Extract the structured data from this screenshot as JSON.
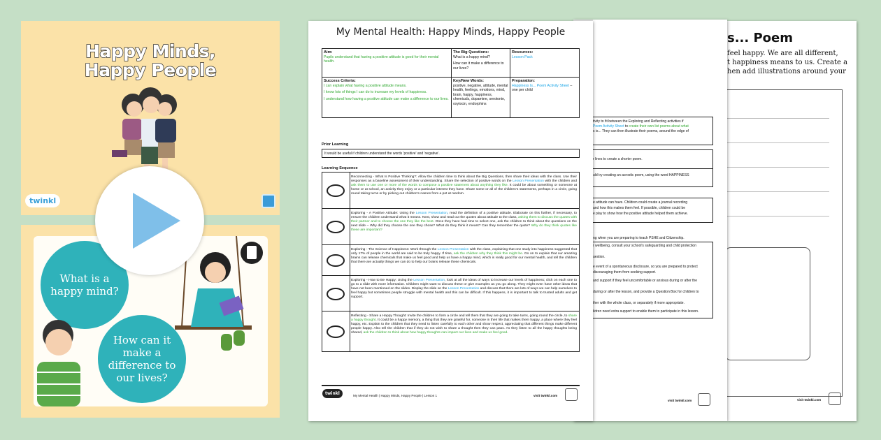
{
  "slide1": {
    "title_line1": "Happy Minds,",
    "title_line2": "Happy People",
    "logo": "twinkl",
    "bg": "#fbe2a8"
  },
  "slide2": {
    "bubble1": "What is a happy mind?",
    "bubble2": "How can it make a difference to our lives?",
    "bubble_color": "#2fb2ba"
  },
  "play_button": {
    "icon": "play-icon",
    "color": "#7fbfe9"
  },
  "doc1": {
    "title": "My Mental Health: Happy Minds, Happy People",
    "aim_h": "Aim:",
    "aim": "Pupils understand that having a positive attitude is good for their mental health.",
    "bq_h": "The Big Questions:",
    "bq1": "What is a happy mind?",
    "bq2": "How can it make a difference to our lives?",
    "res_h": "Resources:",
    "res": "Lesson Pack",
    "sc_h": "Success Criteria:",
    "sc1": "I can explain what having a positive attitude means.",
    "sc2": "I know lots of things I can do to increase my levels of happiness.",
    "sc3": "I understand how having a positive attitude can make a difference to our lives.",
    "kw_h": "Key/New Words:",
    "kw": "positive, negative, attitude, mental health, feelings, emotions, mind, brain, happy, happiness, chemicals, dopamine, serotonin, oxytocin, endorphins",
    "prep_h": "Preparation:",
    "prep_link": "Happiness Is... Poem Activity Sheet",
    "prep_rest": " – one per child",
    "prior_h": "Prior Learning",
    "prior": "It would be useful if children understand the words 'positive' and 'negative'.",
    "seq_h": "Learning Sequence",
    "sequence": [
      [
        {
          "t": "Reconnecting - What Is Positive Thinking?: Allow the children time to think about the Big Questions, then share their ideas with the class. Use their responses as a baseline assessment of their understanding. Share the selection of positive words on the ",
          "c": ""
        },
        {
          "t": "Lesson Presentation",
          "c": "b"
        },
        {
          "t": " with the children and ",
          "c": ""
        },
        {
          "t": "ask them to use one or more of the words to compose a positive statement about anything they like",
          "c": "g"
        },
        {
          "t": ". It could be about something or someone at home or at school, an activity they enjoy or a particular interest they have. Share some or all of the children's statements, perhaps in a circle, going round taking turns or by picking out children's names from a pot at random.",
          "c": ""
        }
      ],
      [
        {
          "t": "Exploring - A Positive Attitude: Using the ",
          "c": ""
        },
        {
          "t": "Lesson Presentation",
          "c": "b"
        },
        {
          "t": ", read the definition of a positive attitude. Elaborate on this further, if necessary, to ensure the children understand what it means. Next, show and read out the quotes about attitude to the class, ",
          "c": ""
        },
        {
          "t": "asking them to discuss the quotes with their partner and to choose the one they like the best",
          "c": "g"
        },
        {
          "t": ". Once they have had time to select one, ask the children to think about the questions on the next slide – Why did they choose the one they chose? What do they think it meant? Can they remember the quote? ",
          "c": ""
        },
        {
          "t": "Why do they think quotes like these are important?",
          "c": "g"
        }
      ],
      [
        {
          "t": "Exploring - The Science of Happiness: Work through the ",
          "c": ""
        },
        {
          "t": "Lesson Presentation",
          "c": "b"
        },
        {
          "t": " with the class, explaining that one study into happiness suggested that only 17% of people in the world are said to be truly happy. If time, ",
          "c": ""
        },
        {
          "t": "ask the children why they think this might be",
          "c": "g"
        },
        {
          "t": ". Go on to explain that our amazing brains can release chemicals that make us feel good and help us have a happy mind, which is really good for our mental health, and tell the children that there are actually things we can do to help our brains release these chemicals.",
          "c": ""
        }
      ],
      [
        {
          "t": "Exploring - How to Be Happy: Using the ",
          "c": ""
        },
        {
          "t": "Lesson Presentation",
          "c": "b"
        },
        {
          "t": ", look at all the ideas of ways to increase our levels of happiness; click on each one to go to a slide with more information. Children might want to discuss these or give examples as you go along. They might even have other ideas that have not been mentioned on the slides. Display the slide on the ",
          "c": ""
        },
        {
          "t": "Lesson Presentation",
          "c": "b"
        },
        {
          "t": " and discuss that there are lots of ways we can help ourselves to feel happy but sometimes people struggle with mental health and this can be difficult. If this happens, it is important to talk to trusted adults and get support.",
          "c": ""
        }
      ],
      [
        {
          "t": "Reflecting - Share a Happy Thought: Invite the children to form a circle and tell them that they are going to take turns, going round the circle, to ",
          "c": ""
        },
        {
          "t": "share a happy thought",
          "c": "g"
        },
        {
          "t": ". It could be a happy memory, a thing that they are grateful for, someone in their life that makes them happy, a place where they feel happy, etc. Explain to the children that they need to listen carefully to each other and show respect, appreciating that different things make different people happy. Also tell the children that if they do not wish to share a thought then they can pass. As they listen to all the happy thoughts being shared, ",
          "c": ""
        },
        {
          "t": "ask the children to think about how happy thoughts can impact our lives and make us feel good",
          "c": "g"
        },
        {
          "t": ".",
          "c": ""
        }
      ]
    ],
    "footer": "My Mental Health | Happy Minds, Happy People | Lesson 1",
    "footer_url": "visit twinkl.com",
    "logo": "twinkl"
  },
  "doc2": {
    "box1": [
      {
        "t": "tivity to fit between the Exploring and Reflecting activities if"
      },
      {
        "t": "Poem Activity Sheet",
        "c": "b"
      },
      {
        "t": " to "
      },
      {
        "t": "create their own list poems about what",
        "c": "g"
      },
      {
        "t": "s is... They can then illustrate their poems, around the edge of"
      }
    ],
    "box2a": "r lines to create a shorter poem.",
    "box2b": "uld try creating an acrostic poem, using the word HAPPINESS",
    "box3": [
      "e attitude can have. Children could create a journal recording",
      "and how this makes them feel. If possible, children could be",
      "e play to show how the positive attitude helped them achieve."
    ],
    "note": "ng when you are preparing to teach PSHE and Citizenship.",
    "box4": [
      "r wellbeing, consult your school's safeguarding and child protection",
      "uestion.",
      "e event of a spontaneous disclosure, so you are prepared to protect",
      "discouraging them from seeking support.",
      "and support if they feel uncomfortable or anxious during or after the",
      "during or after the lesson, and provide a Question Box for children to",
      "ther with the whole class, or separately if more appropriate.",
      "ildren need extra support to enable them to participate in this lesson."
    ],
    "footer_url": "visit twinkl.com"
  },
  "doc3": {
    "title": "s... Poem",
    "lines": [
      "feel happy. We are all different,",
      "t happiness means to us. Create a",
      "hen add illustrations around your"
    ],
    "footer_url": "visit twinkl.com"
  }
}
